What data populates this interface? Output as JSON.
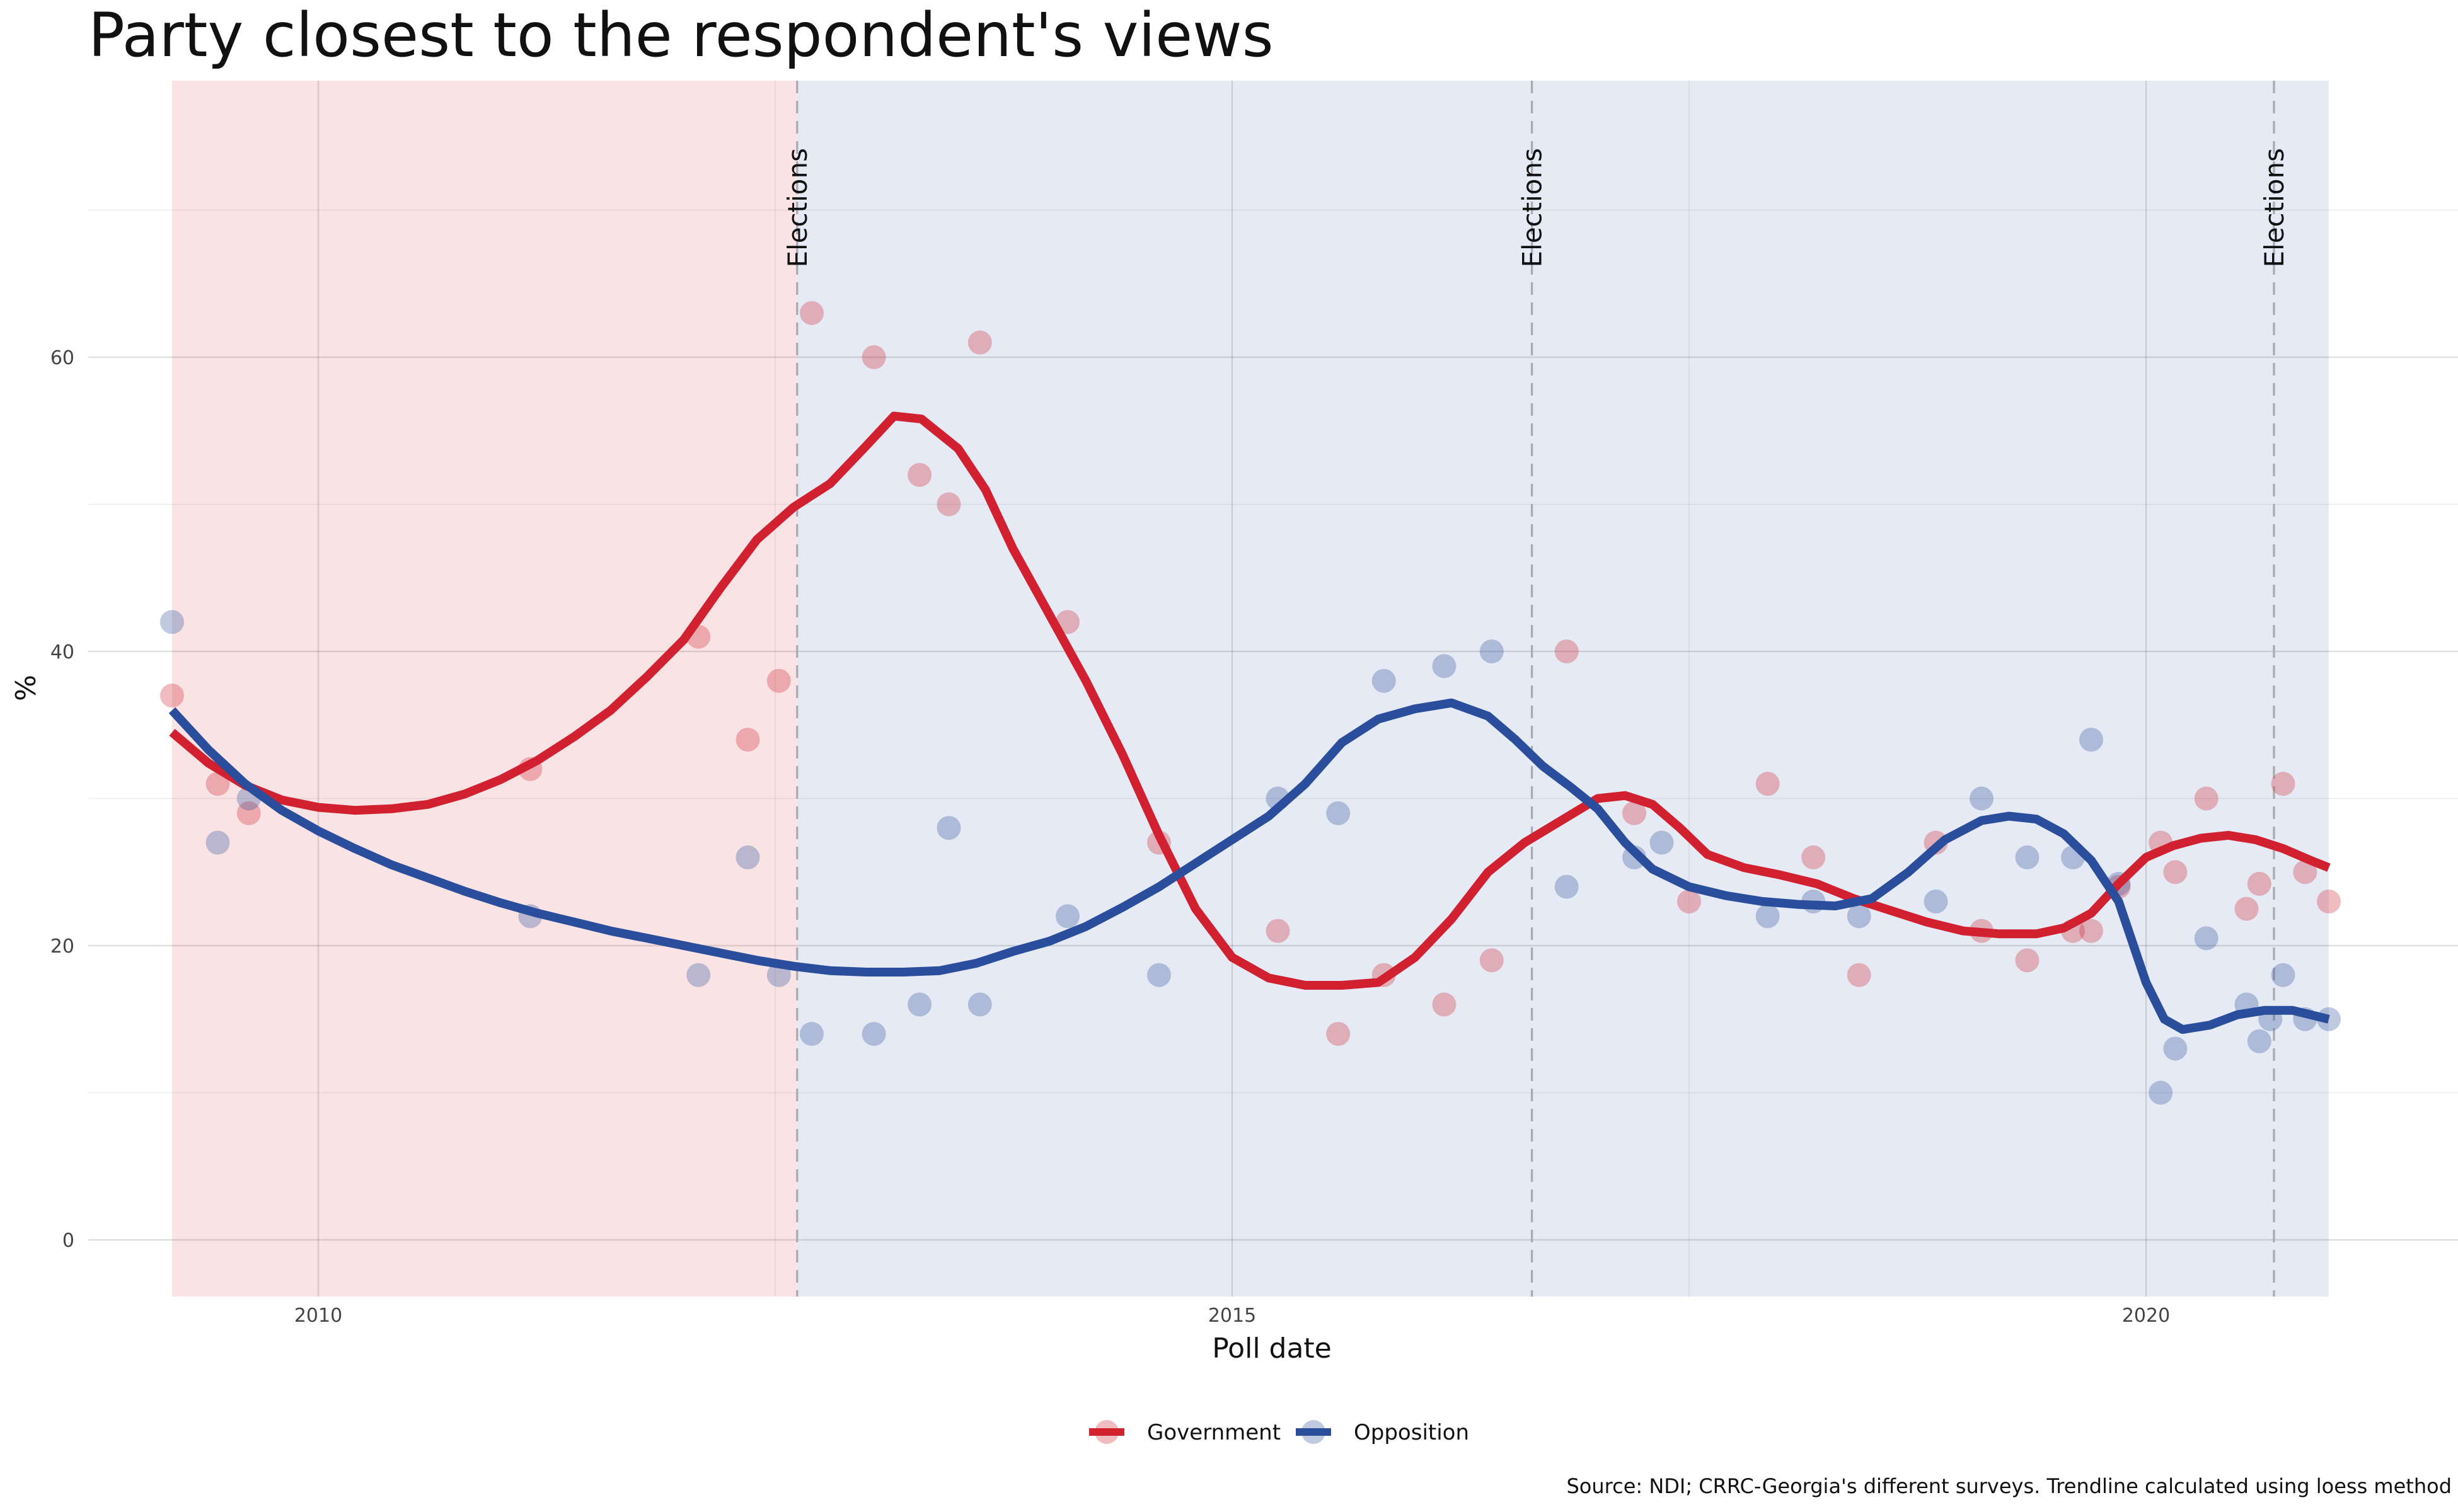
{
  "chart_data": {
    "type": "scatter",
    "title": "Party closest to the respondent's views",
    "xlabel": "Poll date",
    "ylabel": "%",
    "caption": "Source: NDI; CRRC-Georgia's different surveys. Trendline calculated using loess method",
    "x_range": [
      2008.8,
      2021.4
    ],
    "ylim": [
      -4,
      72
    ],
    "x_ticks": [
      2010,
      2015,
      2020
    ],
    "y_ticks": [
      0,
      20,
      40,
      60
    ],
    "grid": true,
    "legend_position": "bottom",
    "periods": [
      {
        "start": 2009.2,
        "end": 2012.62,
        "color": "#fae3e5"
      },
      {
        "start": 2012.62,
        "end": 2021.0,
        "color": "#e6eaf4"
      }
    ],
    "events": [
      {
        "x": 2012.62,
        "label": "Elections"
      },
      {
        "x": 2016.64,
        "label": "Elections"
      },
      {
        "x": 2020.7,
        "label": "Elections"
      }
    ],
    "series": [
      {
        "name": "Government",
        "color": "#d1202f",
        "points": [
          [
            2009.2,
            37
          ],
          [
            2009.45,
            31
          ],
          [
            2009.62,
            29
          ],
          [
            2011.16,
            32
          ],
          [
            2012.08,
            41
          ],
          [
            2012.35,
            34
          ],
          [
            2012.52,
            38
          ],
          [
            2012.7,
            63
          ],
          [
            2013.04,
            60
          ],
          [
            2013.29,
            52
          ],
          [
            2013.45,
            50
          ],
          [
            2013.62,
            61
          ],
          [
            2014.1,
            42
          ],
          [
            2014.6,
            27
          ],
          [
            2015.25,
            21
          ],
          [
            2015.58,
            14
          ],
          [
            2015.83,
            18
          ],
          [
            2016.16,
            16
          ],
          [
            2016.42,
            19
          ],
          [
            2016.83,
            40
          ],
          [
            2017.2,
            29
          ],
          [
            2017.5,
            23
          ],
          [
            2017.93,
            31
          ],
          [
            2018.18,
            26
          ],
          [
            2018.43,
            18
          ],
          [
            2018.85,
            27
          ],
          [
            2019.1,
            21
          ],
          [
            2019.35,
            19
          ],
          [
            2019.6,
            21
          ],
          [
            2019.7,
            21
          ],
          [
            2019.85,
            24
          ],
          [
            2020.08,
            27
          ],
          [
            2020.16,
            25
          ],
          [
            2020.33,
            30
          ],
          [
            2020.55,
            22.5
          ],
          [
            2020.62,
            24.2
          ],
          [
            2020.75,
            31
          ],
          [
            2020.87,
            25
          ],
          [
            2021.0,
            23
          ]
        ],
        "trend": [
          [
            2009.2,
            34.5
          ],
          [
            2009.4,
            32.4
          ],
          [
            2009.6,
            30.9
          ],
          [
            2009.8,
            29.9
          ],
          [
            2010.0,
            29.4
          ],
          [
            2010.2,
            29.2
          ],
          [
            2010.4,
            29.3
          ],
          [
            2010.6,
            29.6
          ],
          [
            2010.8,
            30.3
          ],
          [
            2011.0,
            31.3
          ],
          [
            2011.2,
            32.6
          ],
          [
            2011.4,
            34.2
          ],
          [
            2011.6,
            36.0
          ],
          [
            2011.8,
            38.3
          ],
          [
            2012.0,
            40.8
          ],
          [
            2012.2,
            44.3
          ],
          [
            2012.4,
            47.6
          ],
          [
            2012.6,
            49.8
          ],
          [
            2012.8,
            51.4
          ],
          [
            2013.0,
            54.0
          ],
          [
            2013.15,
            56.0
          ],
          [
            2013.3,
            55.8
          ],
          [
            2013.5,
            53.8
          ],
          [
            2013.65,
            51.0
          ],
          [
            2013.8,
            47.0
          ],
          [
            2014.0,
            42.5
          ],
          [
            2014.2,
            38.0
          ],
          [
            2014.4,
            33.0
          ],
          [
            2014.6,
            27.5
          ],
          [
            2014.8,
            22.5
          ],
          [
            2015.0,
            19.2
          ],
          [
            2015.2,
            17.8
          ],
          [
            2015.4,
            17.3
          ],
          [
            2015.6,
            17.3
          ],
          [
            2015.8,
            17.5
          ],
          [
            2016.0,
            19.2
          ],
          [
            2016.2,
            21.8
          ],
          [
            2016.4,
            25.0
          ],
          [
            2016.6,
            27.0
          ],
          [
            2016.8,
            28.5
          ],
          [
            2017.0,
            30.0
          ],
          [
            2017.15,
            30.2
          ],
          [
            2017.3,
            29.6
          ],
          [
            2017.45,
            28.0
          ],
          [
            2017.6,
            26.2
          ],
          [
            2017.8,
            25.3
          ],
          [
            2018.0,
            24.8
          ],
          [
            2018.2,
            24.2
          ],
          [
            2018.4,
            23.2
          ],
          [
            2018.6,
            22.4
          ],
          [
            2018.8,
            21.6
          ],
          [
            2019.0,
            21.0
          ],
          [
            2019.2,
            20.8
          ],
          [
            2019.4,
            20.8
          ],
          [
            2019.55,
            21.2
          ],
          [
            2019.7,
            22.2
          ],
          [
            2019.85,
            24.2
          ],
          [
            2020.0,
            26.0
          ],
          [
            2020.15,
            26.8
          ],
          [
            2020.3,
            27.3
          ],
          [
            2020.45,
            27.5
          ],
          [
            2020.6,
            27.2
          ],
          [
            2020.75,
            26.6
          ],
          [
            2020.9,
            25.8
          ],
          [
            2021.0,
            25.3
          ]
        ]
      },
      {
        "name": "Opposition",
        "color": "#2a4e9c",
        "points": [
          [
            2009.2,
            42
          ],
          [
            2009.45,
            27
          ],
          [
            2009.62,
            30
          ],
          [
            2011.16,
            22
          ],
          [
            2012.08,
            18
          ],
          [
            2012.35,
            26
          ],
          [
            2012.52,
            18
          ],
          [
            2012.7,
            14
          ],
          [
            2013.04,
            14
          ],
          [
            2013.29,
            16
          ],
          [
            2013.45,
            28
          ],
          [
            2013.62,
            16
          ],
          [
            2014.1,
            22
          ],
          [
            2014.6,
            18
          ],
          [
            2015.25,
            30
          ],
          [
            2015.58,
            29
          ],
          [
            2015.83,
            38
          ],
          [
            2016.16,
            39
          ],
          [
            2016.42,
            40
          ],
          [
            2016.83,
            24
          ],
          [
            2017.2,
            26
          ],
          [
            2017.35,
            27
          ],
          [
            2017.93,
            22
          ],
          [
            2018.18,
            23
          ],
          [
            2018.43,
            22
          ],
          [
            2018.85,
            23
          ],
          [
            2019.1,
            30
          ],
          [
            2019.35,
            26
          ],
          [
            2019.6,
            26
          ],
          [
            2019.7,
            34
          ],
          [
            2019.85,
            24.2
          ],
          [
            2020.08,
            10
          ],
          [
            2020.16,
            13
          ],
          [
            2020.33,
            20.5
          ],
          [
            2020.55,
            16
          ],
          [
            2020.62,
            13.5
          ],
          [
            2020.68,
            15
          ],
          [
            2020.75,
            18
          ],
          [
            2020.87,
            15
          ],
          [
            2021.0,
            15
          ]
        ],
        "trend": [
          [
            2009.2,
            36.0
          ],
          [
            2009.4,
            33.3
          ],
          [
            2009.6,
            31.0
          ],
          [
            2009.8,
            29.2
          ],
          [
            2010.0,
            27.8
          ],
          [
            2010.2,
            26.6
          ],
          [
            2010.4,
            25.5
          ],
          [
            2010.6,
            24.6
          ],
          [
            2010.8,
            23.7
          ],
          [
            2011.0,
            22.9
          ],
          [
            2011.2,
            22.2
          ],
          [
            2011.4,
            21.6
          ],
          [
            2011.6,
            21.0
          ],
          [
            2011.8,
            20.5
          ],
          [
            2012.0,
            20.0
          ],
          [
            2012.2,
            19.5
          ],
          [
            2012.4,
            19.0
          ],
          [
            2012.6,
            18.6
          ],
          [
            2012.8,
            18.3
          ],
          [
            2013.0,
            18.2
          ],
          [
            2013.2,
            18.2
          ],
          [
            2013.4,
            18.3
          ],
          [
            2013.6,
            18.8
          ],
          [
            2013.8,
            19.6
          ],
          [
            2014.0,
            20.3
          ],
          [
            2014.2,
            21.3
          ],
          [
            2014.4,
            22.6
          ],
          [
            2014.6,
            24.0
          ],
          [
            2014.8,
            25.6
          ],
          [
            2015.0,
            27.2
          ],
          [
            2015.2,
            28.8
          ],
          [
            2015.4,
            31.0
          ],
          [
            2015.6,
            33.8
          ],
          [
            2015.8,
            35.4
          ],
          [
            2016.0,
            36.1
          ],
          [
            2016.2,
            36.5
          ],
          [
            2016.4,
            35.6
          ],
          [
            2016.55,
            34.0
          ],
          [
            2016.7,
            32.2
          ],
          [
            2016.85,
            30.8
          ],
          [
            2017.0,
            29.3
          ],
          [
            2017.15,
            27.0
          ],
          [
            2017.3,
            25.2
          ],
          [
            2017.5,
            24.0
          ],
          [
            2017.7,
            23.4
          ],
          [
            2017.9,
            23.0
          ],
          [
            2018.1,
            22.8
          ],
          [
            2018.3,
            22.7
          ],
          [
            2018.5,
            23.2
          ],
          [
            2018.7,
            25.0
          ],
          [
            2018.9,
            27.2
          ],
          [
            2019.1,
            28.5
          ],
          [
            2019.25,
            28.8
          ],
          [
            2019.4,
            28.6
          ],
          [
            2019.55,
            27.6
          ],
          [
            2019.7,
            25.8
          ],
          [
            2019.85,
            23.0
          ],
          [
            2020.0,
            17.5
          ],
          [
            2020.1,
            15.0
          ],
          [
            2020.2,
            14.3
          ],
          [
            2020.35,
            14.6
          ],
          [
            2020.5,
            15.3
          ],
          [
            2020.65,
            15.6
          ],
          [
            2020.8,
            15.6
          ],
          [
            2020.9,
            15.3
          ],
          [
            2021.0,
            15.0
          ]
        ]
      }
    ]
  }
}
